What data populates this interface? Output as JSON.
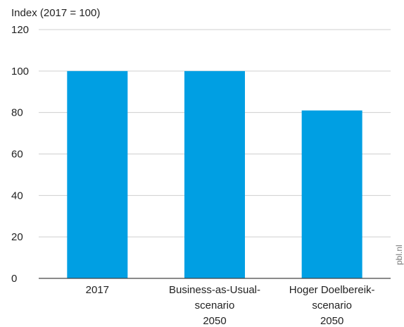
{
  "chart_data": {
    "type": "bar",
    "ylabel": "Index (2017 = 100)",
    "ylim": [
      0,
      120
    ],
    "yticks": [
      0,
      20,
      40,
      60,
      80,
      100,
      120
    ],
    "categories": [
      [
        "2017"
      ],
      [
        "Business-as-Usual-",
        "scenario",
        "2050"
      ],
      [
        "Hoger Doelbereik-",
        "scenario",
        "2050"
      ]
    ],
    "values": [
      100,
      100,
      81
    ],
    "bar_color": "#009fe3",
    "grid": "horizontal",
    "credit": "pbl.nl"
  }
}
